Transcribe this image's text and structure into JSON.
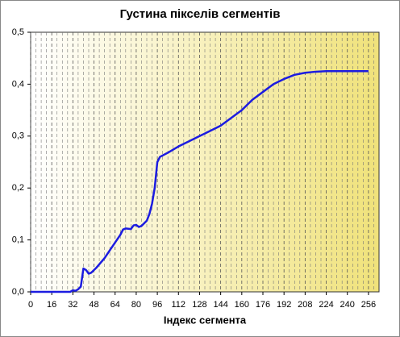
{
  "chart_data": {
    "type": "line",
    "title": "Густина пікселів сегментів",
    "x_label": "Індекс сегмента",
    "x": [
      0,
      8,
      16,
      24,
      30,
      32,
      34,
      36,
      38,
      40,
      42,
      44,
      46,
      50,
      56,
      60,
      64,
      68,
      70,
      72,
      76,
      78,
      80,
      82,
      84,
      88,
      90,
      92,
      94,
      96,
      98,
      104,
      112,
      120,
      128,
      136,
      144,
      152,
      160,
      168,
      176,
      184,
      192,
      200,
      208,
      216,
      224,
      240,
      256
    ],
    "values": [
      0,
      0,
      0,
      0,
      0,
      0.003,
      0.002,
      0.005,
      0.01,
      0.045,
      0.042,
      0.035,
      0.037,
      0.047,
      0.065,
      0.08,
      0.095,
      0.11,
      0.12,
      0.122,
      0.121,
      0.128,
      0.129,
      0.125,
      0.127,
      0.137,
      0.15,
      0.17,
      0.2,
      0.25,
      0.26,
      0.268,
      0.28,
      0.29,
      0.3,
      0.31,
      0.32,
      0.335,
      0.35,
      0.37,
      0.385,
      0.4,
      0.41,
      0.418,
      0.422,
      0.424,
      0.425,
      0.425,
      0.425
    ],
    "color": "#1c1ce0",
    "xlim": [
      0,
      264
    ],
    "ylim": [
      0,
      0.5
    ],
    "xticks": [
      0,
      16,
      32,
      48,
      64,
      80,
      96,
      112,
      128,
      144,
      160,
      176,
      192,
      208,
      224,
      240,
      256
    ],
    "x_minor_grid": [
      4,
      8,
      12,
      20,
      24,
      28,
      36,
      40,
      44,
      52,
      56,
      60,
      68,
      72,
      76,
      84,
      88,
      92,
      100,
      104,
      108,
      116,
      120,
      124,
      132,
      136,
      140,
      148,
      152,
      156,
      164,
      168,
      172,
      180,
      184,
      188,
      196,
      200,
      204,
      212,
      216,
      220,
      228,
      232,
      236,
      244,
      248,
      252,
      260
    ],
    "yticks": [
      {
        "value": 0,
        "label": "0,0"
      },
      {
        "value": 0.1,
        "label": "0,1"
      },
      {
        "value": 0.2,
        "label": "0,2"
      },
      {
        "value": 0.3,
        "label": "0,3"
      },
      {
        "value": 0.4,
        "label": "0,4"
      },
      {
        "value": 0.5,
        "label": "0,5"
      }
    ],
    "grid": true
  }
}
